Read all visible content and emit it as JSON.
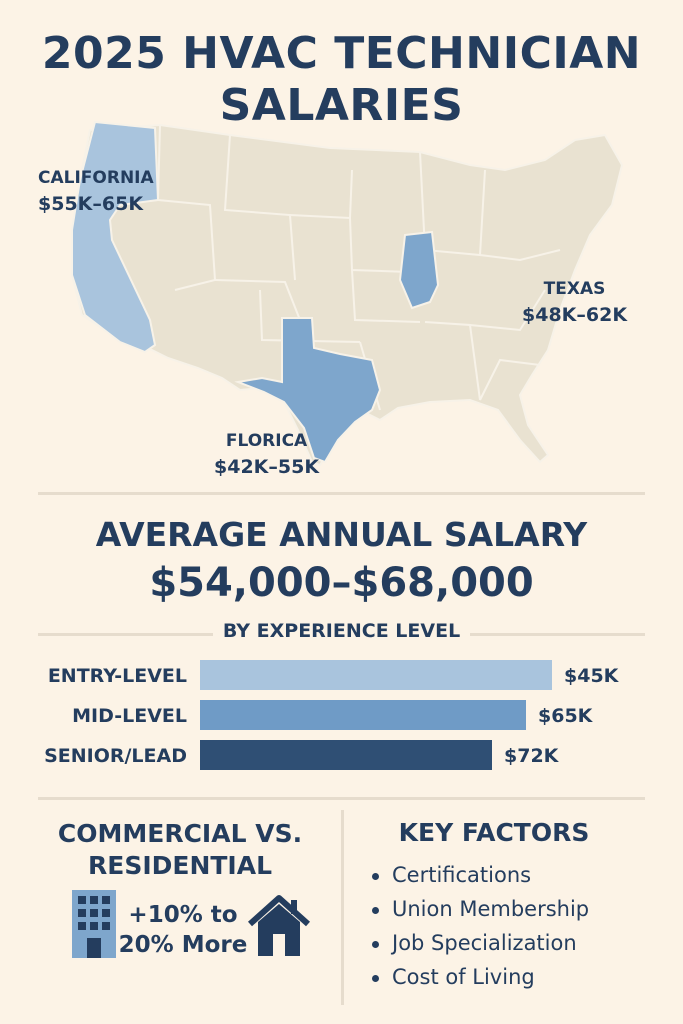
{
  "title": {
    "line1": "2025 HVAC TECHNICIAN",
    "line2": "SALARIES"
  },
  "map": {
    "labels": [
      {
        "state": "CALIFORNIA",
        "range": "$55K–65K"
      },
      {
        "state": "TEXAS",
        "range": "$48K–62K"
      },
      {
        "state": "FLORICA",
        "range": "$42K–55K"
      }
    ],
    "colors": {
      "land": "#e9e2d1",
      "borders": "#f7f2e8",
      "highlight_light": "#a9c4dd",
      "highlight_mid": "#7ea6cc"
    }
  },
  "average": {
    "label": "AVERAGE ANNUAL SALARY",
    "value": "$54,000–$68,000"
  },
  "chart_data": {
    "type": "bar",
    "title": "BY EXPERIENCE LEVEL",
    "categories": [
      "ENTRY-LEVEL",
      "MID-LEVEL",
      "SENIOR/LEAD"
    ],
    "values": [
      45,
      65,
      72
    ],
    "value_labels": [
      "$45K",
      "$65K",
      "$72K"
    ],
    "orientation": "horizontal",
    "colors": [
      "#a9c4dd",
      "#6f9bc6",
      "#2f4f74"
    ]
  },
  "commercial": {
    "title_line1": "COMMERCIAL VS.",
    "title_line2": "RESIDENTIAL",
    "value_line1": "+10% to",
    "value_line2": "20% More",
    "icons": [
      "office-building-icon",
      "house-icon"
    ]
  },
  "key_factors": {
    "title": "KEY FACTORS",
    "items": [
      "Certifications",
      "Union Membership",
      "Job Specialization",
      "Cost of Living"
    ]
  }
}
